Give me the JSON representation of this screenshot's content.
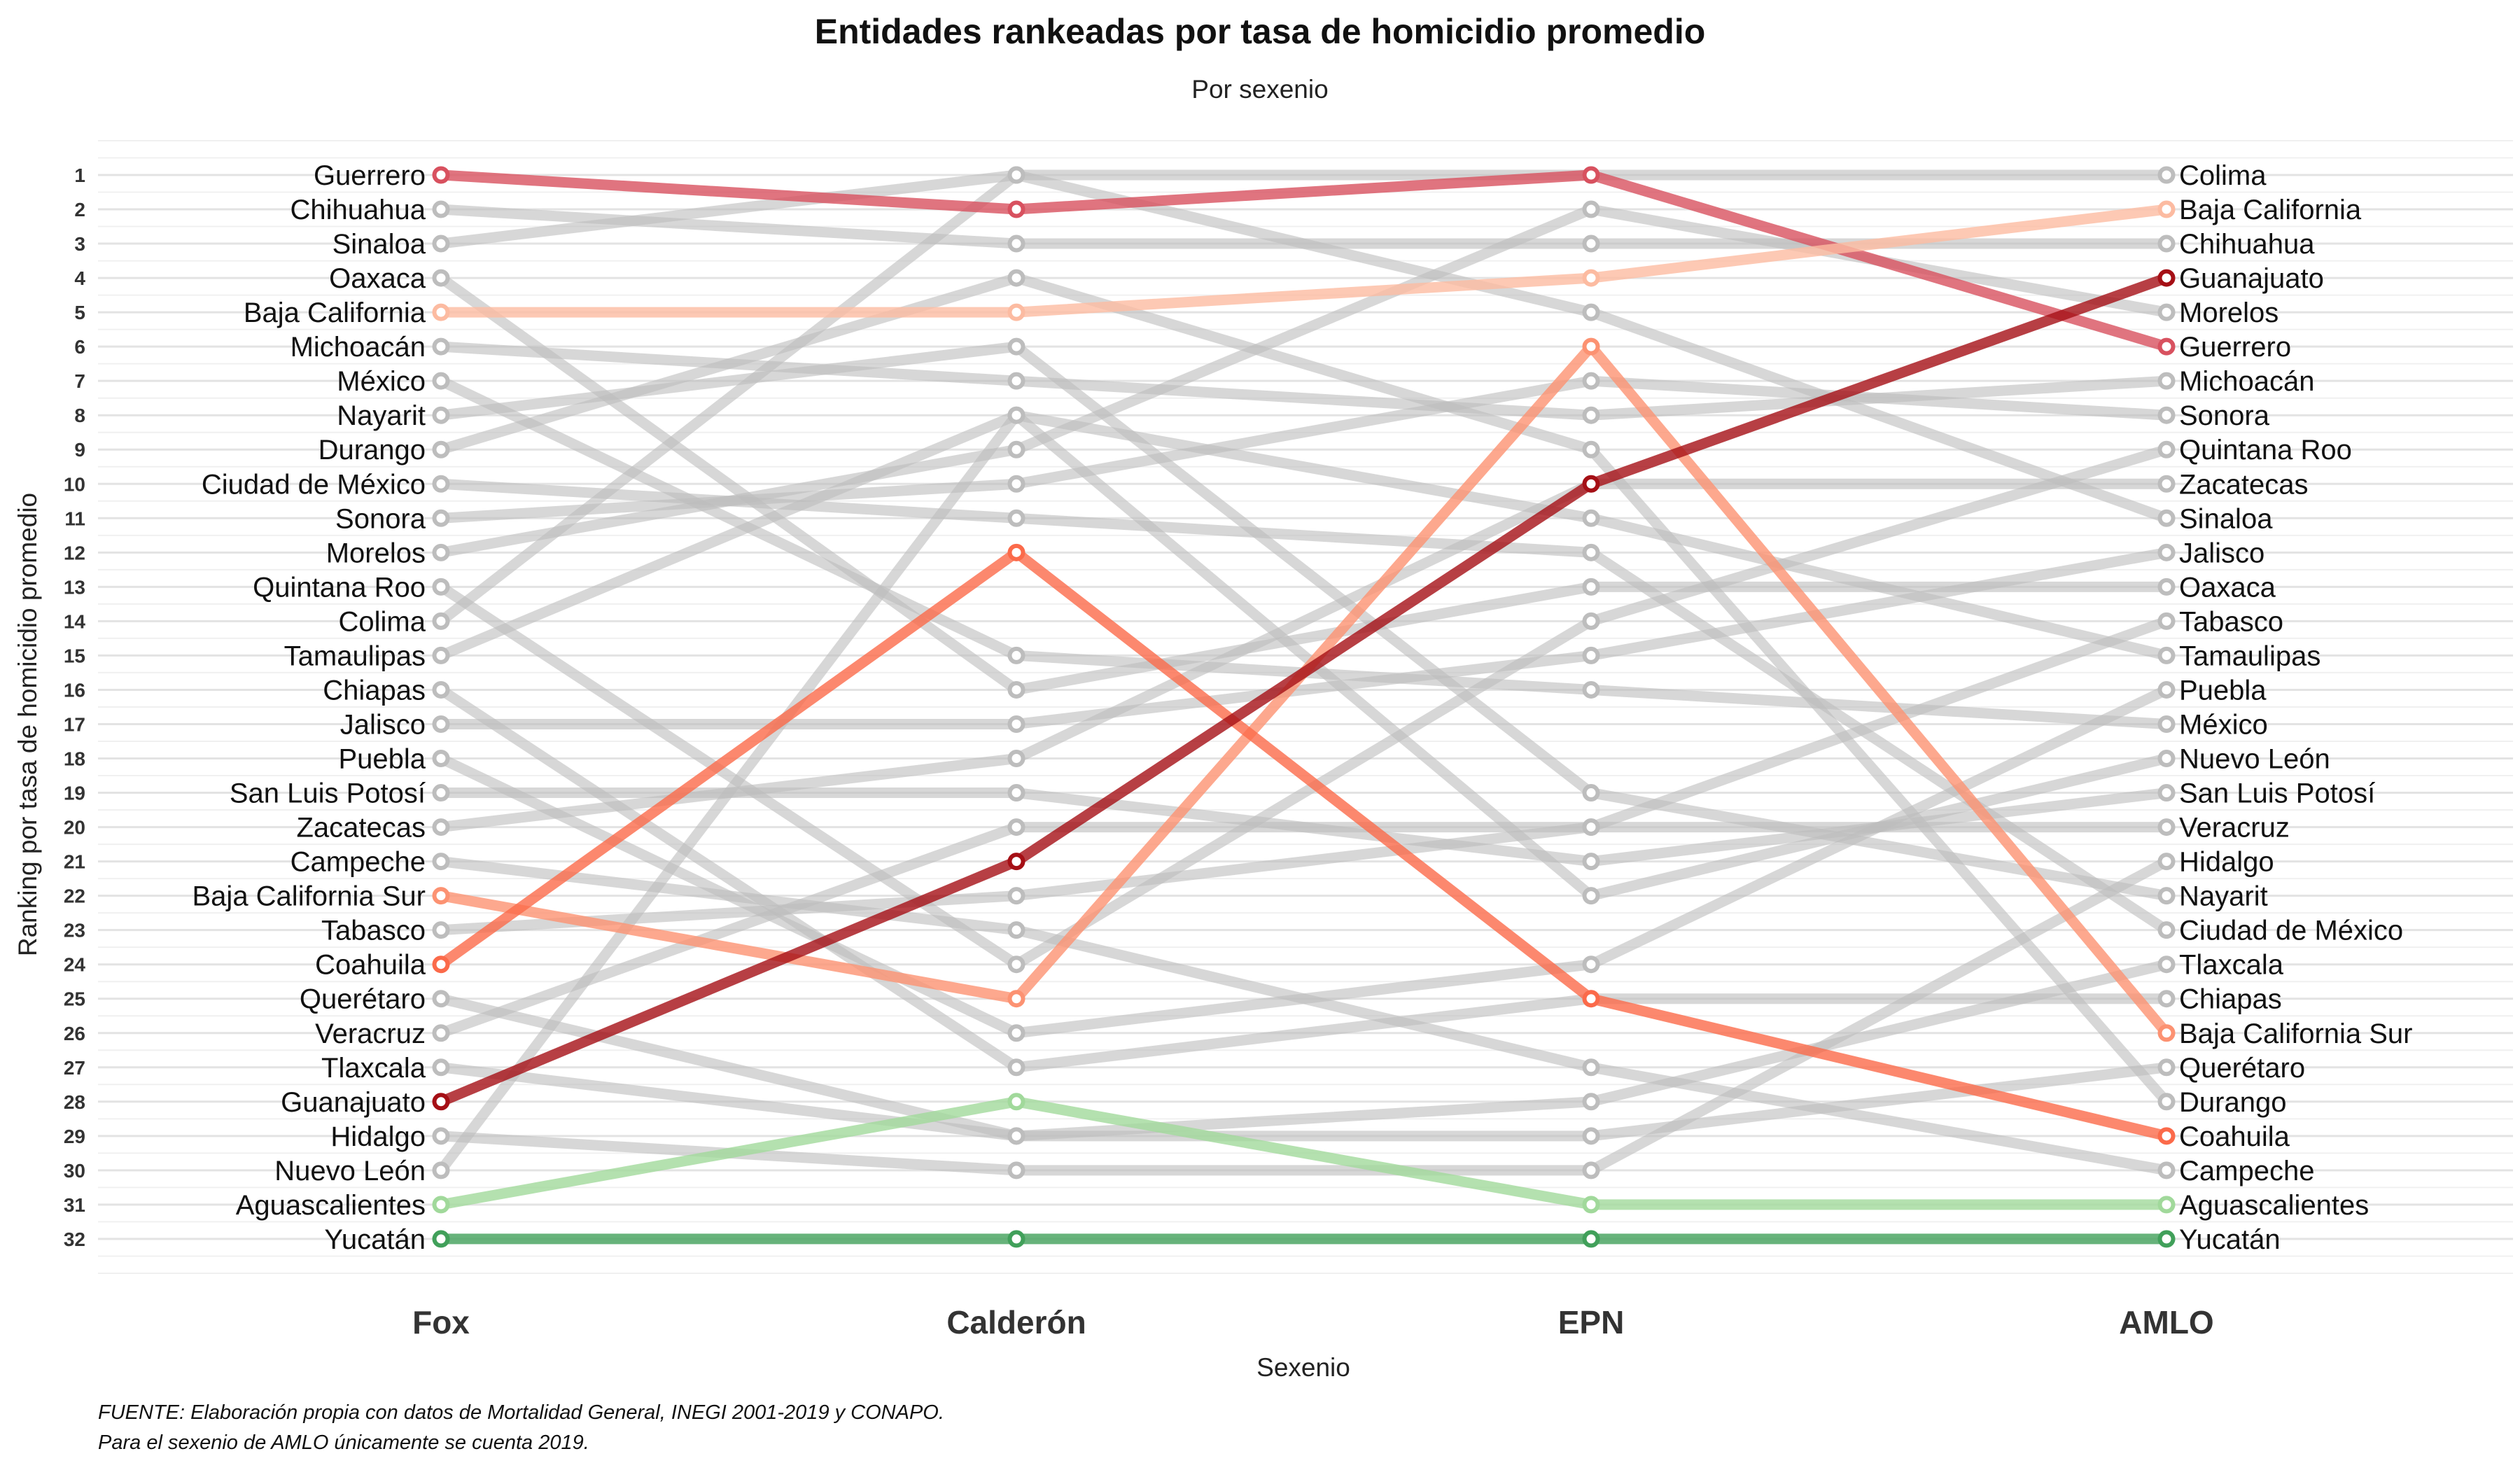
{
  "chart_data": {
    "type": "line",
    "title": "Entidades rankeadas por tasa de homicidio promedio",
    "subtitle": "Por sexenio",
    "xlabel": "Sexenio",
    "ylabel": "Ranking por tasa de homicidio promedio",
    "caption_lines": [
      "FUENTE: Elaboración propia con datos de Mortalidad General, INEGI 2001-2019 y CONAPO.",
      "Para el sexenio de AMLO únicamente se cuenta 2019."
    ],
    "categories": [
      "Fox",
      "Calderón",
      "EPN",
      "AMLO"
    ],
    "y_ticks": [
      1,
      2,
      3,
      4,
      5,
      6,
      7,
      8,
      9,
      10,
      11,
      12,
      13,
      14,
      15,
      16,
      17,
      18,
      19,
      20,
      21,
      22,
      23,
      24,
      25,
      26,
      27,
      28,
      29,
      30,
      31,
      32
    ],
    "ylim": [
      1,
      32
    ],
    "y_reversed": true,
    "grid": true,
    "colors": {
      "gray": "#bdbdbd",
      "Guerrero": "#d8515f",
      "Baja California": "#fcbba1",
      "Guanajuato": "#a50f15",
      "Coahuila": "#fb6a4a",
      "Baja California Sur": "#fc9272",
      "Aguascalientes": "#a1d99b",
      "Yucatán": "#41a05a"
    },
    "series": [
      {
        "name": "Guerrero",
        "values": [
          1,
          2,
          1,
          6
        ],
        "highlight": true
      },
      {
        "name": "Chihuahua",
        "values": [
          2,
          3,
          3,
          3
        ]
      },
      {
        "name": "Sinaloa",
        "values": [
          3,
          1,
          5,
          11
        ]
      },
      {
        "name": "Oaxaca",
        "values": [
          4,
          16,
          13,
          13
        ]
      },
      {
        "name": "Baja California",
        "values": [
          5,
          5,
          4,
          2
        ],
        "highlight": true
      },
      {
        "name": "Michoacán",
        "values": [
          6,
          7,
          8,
          7
        ]
      },
      {
        "name": "México",
        "values": [
          7,
          15,
          16,
          17
        ]
      },
      {
        "name": "Nayarit",
        "values": [
          8,
          6,
          19,
          22
        ]
      },
      {
        "name": "Durango",
        "values": [
          9,
          4,
          9,
          28
        ]
      },
      {
        "name": "Ciudad de México",
        "values": [
          10,
          11,
          12,
          23
        ]
      },
      {
        "name": "Sonora",
        "values": [
          11,
          10,
          7,
          8
        ]
      },
      {
        "name": "Morelos",
        "values": [
          12,
          9,
          2,
          5
        ]
      },
      {
        "name": "Quintana Roo",
        "values": [
          13,
          24,
          14,
          9
        ]
      },
      {
        "name": "Colima",
        "values": [
          14,
          1,
          1,
          1
        ]
      },
      {
        "name": "Tamaulipas",
        "values": [
          15,
          8,
          11,
          15
        ]
      },
      {
        "name": "Chiapas",
        "values": [
          16,
          27,
          25,
          25
        ]
      },
      {
        "name": "Jalisco",
        "values": [
          17,
          17,
          15,
          12
        ]
      },
      {
        "name": "Puebla",
        "values": [
          18,
          26,
          24,
          16
        ]
      },
      {
        "name": "San Luis Potosí",
        "values": [
          19,
          19,
          21,
          19
        ]
      },
      {
        "name": "Zacatecas",
        "values": [
          20,
          18,
          10,
          10
        ]
      },
      {
        "name": "Campeche",
        "values": [
          21,
          23,
          27,
          30
        ]
      },
      {
        "name": "Baja California Sur",
        "values": [
          22,
          25,
          6,
          26
        ],
        "highlight": true
      },
      {
        "name": "Tabasco",
        "values": [
          23,
          22,
          20,
          14
        ]
      },
      {
        "name": "Coahuila",
        "values": [
          24,
          12,
          25,
          29
        ],
        "highlight": true
      },
      {
        "name": "Querétaro",
        "values": [
          25,
          29,
          29,
          27
        ]
      },
      {
        "name": "Veracruz",
        "values": [
          26,
          20,
          20,
          20
        ]
      },
      {
        "name": "Tlaxcala",
        "values": [
          27,
          29,
          28,
          24
        ]
      },
      {
        "name": "Guanajuato",
        "values": [
          28,
          21,
          10,
          4
        ],
        "highlight": true
      },
      {
        "name": "Hidalgo",
        "values": [
          29,
          30,
          30,
          21
        ]
      },
      {
        "name": "Nuevo León",
        "values": [
          30,
          8,
          22,
          18
        ]
      },
      {
        "name": "Aguascalientes",
        "values": [
          31,
          28,
          31,
          31
        ],
        "highlight": true
      },
      {
        "name": "Yucatán",
        "values": [
          32,
          32,
          32,
          32
        ],
        "highlight": true
      }
    ]
  }
}
